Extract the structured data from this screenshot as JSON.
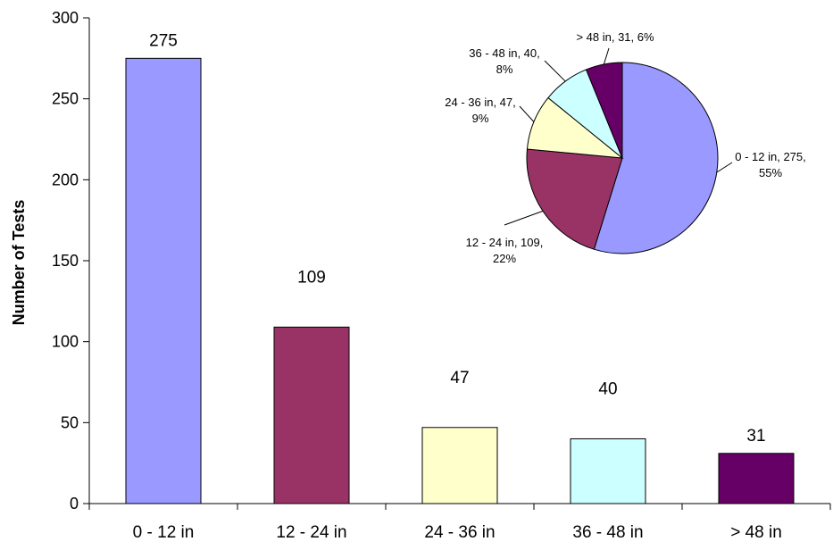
{
  "chart_data": [
    {
      "type": "bar",
      "categories": [
        "0 - 12 in",
        "12 - 24 in",
        "24 - 36 in",
        "36 - 48 in",
        "> 48 in"
      ],
      "values": [
        275,
        109,
        47,
        40,
        31
      ],
      "colors": [
        "#9999ff",
        "#993366",
        "#ffffcc",
        "#ccffff",
        "#660066"
      ],
      "ylabel": "Number of Tests",
      "xlabel": "",
      "ylim": [
        0,
        300
      ],
      "yticks": [
        "0",
        "50",
        "100",
        "150",
        "200",
        "250",
        "300"
      ],
      "data_labels": [
        "275",
        "109",
        "47",
        "40",
        "31"
      ],
      "grid": false,
      "legend": "none"
    },
    {
      "type": "pie",
      "categories": [
        "0 - 12 in",
        "12 - 24 in",
        "24 - 36 in",
        "36 - 48 in",
        "> 48 in"
      ],
      "values": [
        275,
        109,
        47,
        40,
        31
      ],
      "percents": [
        55,
        22,
        9,
        8,
        6
      ],
      "colors": [
        "#9999ff",
        "#993366",
        "#ffffcc",
        "#ccffff",
        "#660066"
      ],
      "labels": [
        [
          "0 - 12 in, 275,",
          "55%"
        ],
        [
          "12 - 24 in, 109,",
          "22%"
        ],
        [
          "24 - 36 in, 47,",
          "9%"
        ],
        [
          "36 - 48 in, 40,",
          "8%"
        ],
        [
          "> 48 in, 31, 6%"
        ]
      ]
    }
  ]
}
